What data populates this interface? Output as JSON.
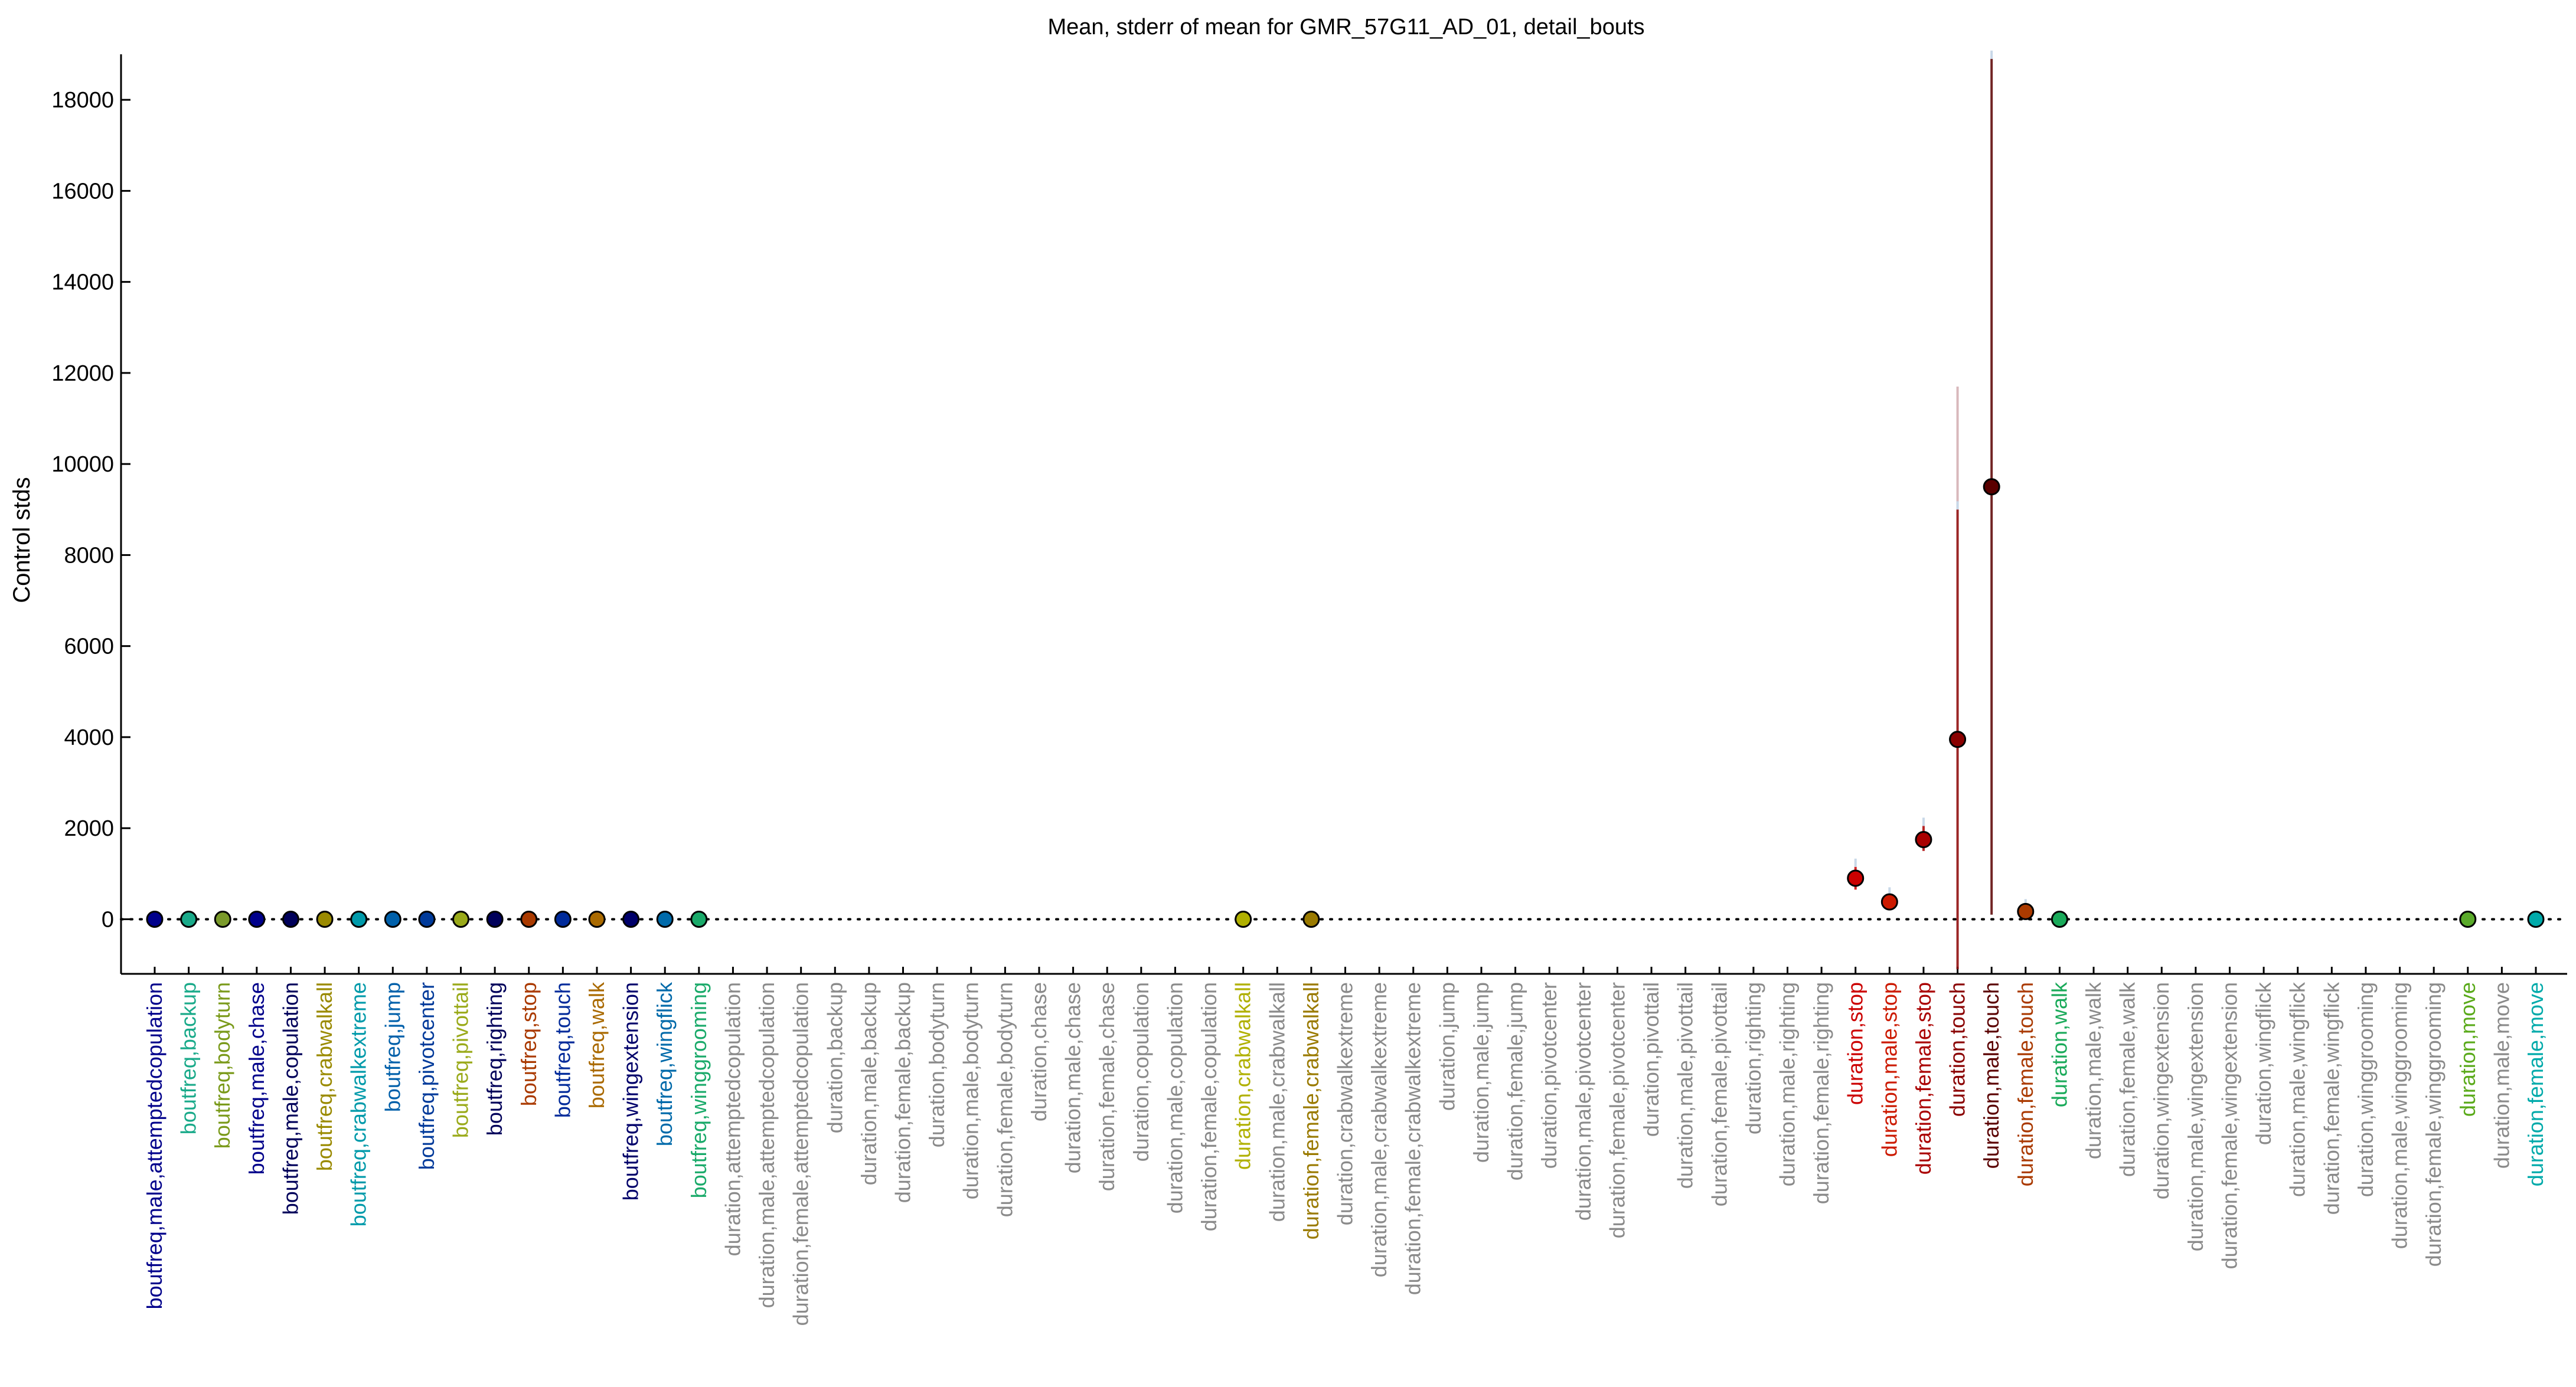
{
  "chart_data": {
    "type": "scatter",
    "title": "Mean, stderr of mean for GMR_57G11_AD_01, detail_bouts",
    "xlabel": "",
    "ylabel": "Control stds",
    "ylim": [
      -1200,
      19000
    ],
    "yticks": [
      0,
      2000,
      4000,
      6000,
      8000,
      10000,
      12000,
      14000,
      16000,
      18000
    ],
    "grid": false,
    "zero_line": "dotted",
    "categories": [
      "boutfreq,male,attemptedcopulation",
      "boutfreq,backup",
      "boutfreq,bodyturn",
      "boutfreq,male,chase",
      "boutfreq,male,copulation",
      "boutfreq,crabwalkall",
      "boutfreq,crabwalkextreme",
      "boutfreq,jump",
      "boutfreq,pivotcenter",
      "boutfreq,pivottail",
      "boutfreq,righting",
      "boutfreq,stop",
      "boutfreq,touch",
      "boutfreq,walk",
      "boutfreq,wingextension",
      "boutfreq,wingflick",
      "boutfreq,winggrooming",
      "duration,attemptedcopulation",
      "duration,male,attemptedcopulation",
      "duration,female,attemptedcopulation",
      "duration,backup",
      "duration,male,backup",
      "duration,female,backup",
      "duration,bodyturn",
      "duration,male,bodyturn",
      "duration,female,bodyturn",
      "duration,chase",
      "duration,male,chase",
      "duration,female,chase",
      "duration,copulation",
      "duration,male,copulation",
      "duration,female,copulation",
      "duration,crabwalkall",
      "duration,male,crabwalkall",
      "duration,female,crabwalkall",
      "duration,crabwalkextreme",
      "duration,male,crabwalkextreme",
      "duration,female,crabwalkextreme",
      "duration,jump",
      "duration,male,jump",
      "duration,female,jump",
      "duration,pivotcenter",
      "duration,male,pivotcenter",
      "duration,female,pivotcenter",
      "duration,pivottail",
      "duration,male,pivottail",
      "duration,female,pivottail",
      "duration,righting",
      "duration,male,righting",
      "duration,female,righting",
      "duration,stop",
      "duration,male,stop",
      "duration,female,stop",
      "duration,touch",
      "duration,male,touch",
      "duration,female,touch",
      "duration,walk",
      "duration,male,walk",
      "duration,female,walk",
      "duration,wingextension",
      "duration,male,wingextension",
      "duration,female,wingextension",
      "duration,wingflick",
      "duration,male,wingflick",
      "duration,female,wingflick",
      "duration,winggrooming",
      "duration,male,winggrooming",
      "duration,female,winggrooming",
      "duration,move",
      "duration,male,move",
      "duration,female,move"
    ],
    "label_colors": [
      "#00008b",
      "#1aaa8a",
      "#7a9a1a",
      "#00008b",
      "#00005a",
      "#9a8a00",
      "#009aaa",
      "#0060aa",
      "#003a9a",
      "#9aaa1a",
      "#00005a",
      "#aa3a00",
      "#002a9a",
      "#aa6a00",
      "#00006a",
      "#006aaa",
      "#1aaa6a",
      "#8a8a8a",
      "#8a8a8a",
      "#8a8a8a",
      "#8a8a8a",
      "#8a8a8a",
      "#8a8a8a",
      "#8a8a8a",
      "#8a8a8a",
      "#8a8a8a",
      "#8a8a8a",
      "#8a8a8a",
      "#8a8a8a",
      "#8a8a8a",
      "#8a8a8a",
      "#8a8a8a",
      "#b0b000",
      "#8a8a8a",
      "#9a7a00",
      "#8a8a8a",
      "#8a8a8a",
      "#8a8a8a",
      "#8a8a8a",
      "#8a8a8a",
      "#8a8a8a",
      "#8a8a8a",
      "#8a8a8a",
      "#8a8a8a",
      "#8a8a8a",
      "#8a8a8a",
      "#8a8a8a",
      "#8a8a8a",
      "#8a8a8a",
      "#8a8a8a",
      "#cc0000",
      "#cc1a00",
      "#aa0000",
      "#8a0000",
      "#5a0000",
      "#aa3a00",
      "#1aaa5a",
      "#8a8a8a",
      "#8a8a8a",
      "#8a8a8a",
      "#8a8a8a",
      "#8a8a8a",
      "#8a8a8a",
      "#8a8a8a",
      "#8a8a8a",
      "#8a8a8a",
      "#8a8a8a",
      "#8a8a8a",
      "#5aaa1a",
      "#8a8a8a",
      "#00aaaa"
    ],
    "points": [
      {
        "i": 0,
        "y": 0,
        "color": "#00008b"
      },
      {
        "i": 1,
        "y": 0,
        "color": "#1aaa8a"
      },
      {
        "i": 2,
        "y": 0,
        "color": "#7a9a2a"
      },
      {
        "i": 3,
        "y": 0,
        "color": "#00008b"
      },
      {
        "i": 4,
        "y": 0,
        "color": "#00005a"
      },
      {
        "i": 5,
        "y": 0,
        "color": "#9a8a00"
      },
      {
        "i": 6,
        "y": 0,
        "color": "#009aaa"
      },
      {
        "i": 7,
        "y": 0,
        "color": "#0060aa"
      },
      {
        "i": 8,
        "y": 0,
        "color": "#003a9a"
      },
      {
        "i": 9,
        "y": 0,
        "color": "#9aaa1a"
      },
      {
        "i": 10,
        "y": 0,
        "color": "#00005a"
      },
      {
        "i": 11,
        "y": 0,
        "color": "#aa3a00"
      },
      {
        "i": 12,
        "y": 0,
        "color": "#002a9a"
      },
      {
        "i": 13,
        "y": 0,
        "color": "#aa6a00"
      },
      {
        "i": 14,
        "y": 0,
        "color": "#00006a"
      },
      {
        "i": 15,
        "y": 0,
        "color": "#006aaa"
      },
      {
        "i": 16,
        "y": 0,
        "color": "#1aaa6a"
      },
      {
        "i": 32,
        "y": 0,
        "color": "#b0b000"
      },
      {
        "i": 34,
        "y": 0,
        "color": "#9a7a00"
      },
      {
        "i": 50,
        "y": 900,
        "color": "#cc0000",
        "err_lo": 650,
        "err_hi": 1150
      },
      {
        "i": 51,
        "y": 380,
        "color": "#cc1a00",
        "err_lo": 250,
        "err_hi": 520
      },
      {
        "i": 52,
        "y": 1750,
        "color": "#aa0000",
        "err_lo": 1500,
        "err_hi": 2050
      },
      {
        "i": 53,
        "y": 3950,
        "color": "#8a0000",
        "err_lo": -1100,
        "err_hi": 9000,
        "err2_lo": 9000,
        "err2_hi": 11700
      },
      {
        "i": 54,
        "y": 9500,
        "color": "#5a0000",
        "err_lo": 100,
        "err_hi": 18900
      },
      {
        "i": 55,
        "y": 170,
        "color": "#aa3a00",
        "err_lo": 80,
        "err_hi": 260
      },
      {
        "i": 56,
        "y": 0,
        "color": "#1aaa5a"
      },
      {
        "i": 68,
        "y": 0,
        "color": "#5aaa2a"
      },
      {
        "i": 70,
        "y": 0,
        "color": "#00aaaa"
      }
    ]
  }
}
